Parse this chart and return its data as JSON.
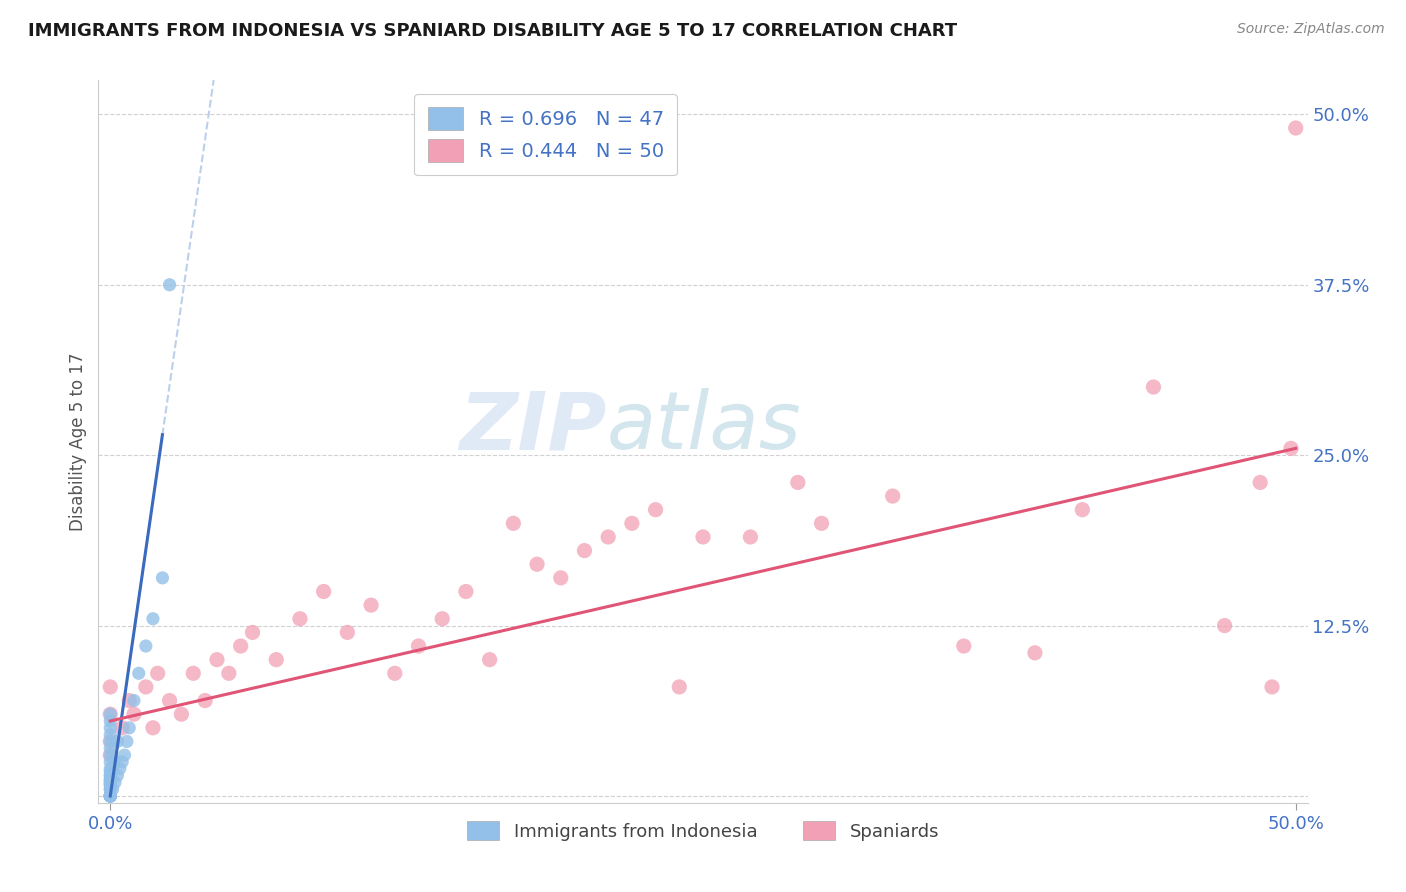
{
  "title": "IMMIGRANTS FROM INDONESIA VS SPANIARD DISABILITY AGE 5 TO 17 CORRELATION CHART",
  "source": "Source: ZipAtlas.com",
  "ylabel": "Disability Age 5 to 17",
  "xlim": [
    0.0,
    0.5
  ],
  "ylim": [
    -0.005,
    0.525
  ],
  "yticks": [
    0.0,
    0.125,
    0.25,
    0.375,
    0.5
  ],
  "ytick_labels": [
    "",
    "12.5%",
    "25.0%",
    "37.5%",
    "50.0%"
  ],
  "xticks": [
    0.0,
    0.5
  ],
  "xtick_labels": [
    "0.0%",
    "50.0%"
  ],
  "legend_R1": "R = 0.696",
  "legend_N1": "N = 47",
  "legend_R2": "R = 0.444",
  "legend_N2": "N = 50",
  "legend_label1": "Immigrants from Indonesia",
  "legend_label2": "Spaniards",
  "color_indonesia": "#92c0e8",
  "color_spaniard": "#f2a0b5",
  "color_line_indonesia": "#3a6bbf",
  "color_line_spaniard": "#e05575",
  "color_dashed": "#b0c8e8",
  "watermark_zip": "ZIP",
  "watermark_atlas": "atlas",
  "background_color": "#ffffff",
  "grid_color": "#cccccc",
  "title_color": "#1a1a1a",
  "axis_label_color": "#4472c4",
  "tick_color": "#4472c4",
  "ylabel_color": "#555555",
  "indonesia_x": [
    0.0,
    0.0,
    0.0,
    0.0,
    0.0,
    0.0,
    0.0,
    0.0,
    0.0,
    0.0,
    0.0,
    0.0,
    0.0,
    0.0,
    0.0,
    0.0,
    0.0,
    0.0,
    0.0,
    0.0,
    0.0,
    0.0,
    0.0,
    0.0,
    0.0,
    0.0,
    0.0,
    0.0,
    0.0,
    0.0,
    0.001,
    0.001,
    0.002,
    0.002,
    0.003,
    0.003,
    0.004,
    0.005,
    0.006,
    0.007,
    0.008,
    0.01,
    0.012,
    0.015,
    0.018,
    0.022,
    0.025
  ],
  "indonesia_y": [
    0.0,
    0.0,
    0.0,
    0.0,
    0.0,
    0.0,
    0.0,
    0.0,
    0.0,
    0.0,
    0.005,
    0.005,
    0.008,
    0.008,
    0.01,
    0.01,
    0.012,
    0.012,
    0.015,
    0.015,
    0.018,
    0.02,
    0.025,
    0.03,
    0.035,
    0.04,
    0.045,
    0.05,
    0.055,
    0.06,
    0.005,
    0.02,
    0.01,
    0.025,
    0.015,
    0.04,
    0.02,
    0.025,
    0.03,
    0.04,
    0.05,
    0.07,
    0.09,
    0.11,
    0.13,
    0.16,
    0.375
  ],
  "spaniard_x": [
    0.0,
    0.0,
    0.0,
    0.0,
    0.005,
    0.008,
    0.01,
    0.015,
    0.018,
    0.02,
    0.025,
    0.03,
    0.035,
    0.04,
    0.045,
    0.05,
    0.055,
    0.06,
    0.07,
    0.08,
    0.09,
    0.1,
    0.11,
    0.12,
    0.13,
    0.14,
    0.15,
    0.16,
    0.17,
    0.18,
    0.19,
    0.2,
    0.21,
    0.22,
    0.23,
    0.24,
    0.25,
    0.27,
    0.29,
    0.3,
    0.33,
    0.36,
    0.39,
    0.41,
    0.44,
    0.47,
    0.485,
    0.49,
    0.498,
    0.5
  ],
  "spaniard_y": [
    0.03,
    0.04,
    0.06,
    0.08,
    0.05,
    0.07,
    0.06,
    0.08,
    0.05,
    0.09,
    0.07,
    0.06,
    0.09,
    0.07,
    0.1,
    0.09,
    0.11,
    0.12,
    0.1,
    0.13,
    0.15,
    0.12,
    0.14,
    0.09,
    0.11,
    0.13,
    0.15,
    0.1,
    0.2,
    0.17,
    0.16,
    0.18,
    0.19,
    0.2,
    0.21,
    0.08,
    0.19,
    0.19,
    0.23,
    0.2,
    0.22,
    0.11,
    0.105,
    0.21,
    0.3,
    0.125,
    0.23,
    0.08,
    0.255,
    0.49
  ],
  "indo_line_x0": 0.0,
  "indo_line_y0": 0.0,
  "indo_line_x1": 0.022,
  "indo_line_y1": 0.265,
  "span_line_x0": 0.0,
  "span_line_y0": 0.055,
  "span_line_x1": 0.5,
  "span_line_y1": 0.255
}
